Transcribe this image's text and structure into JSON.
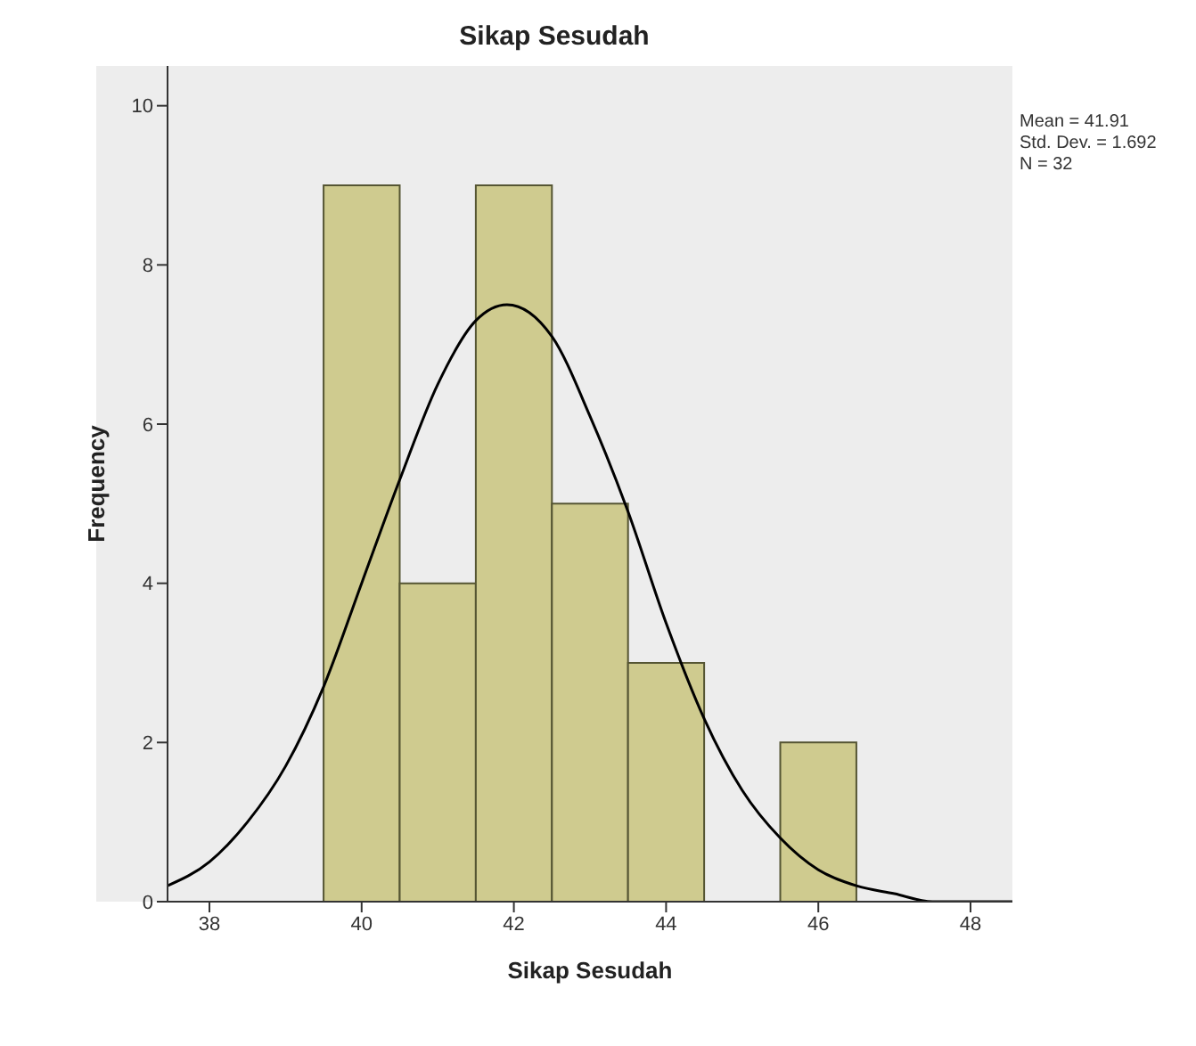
{
  "chart_data": {
    "type": "histogram",
    "title": "Sikap Sesudah",
    "xlabel": "Sikap Sesudah",
    "ylabel": "Frequency",
    "bins": [
      39.5,
      40.5,
      41.5,
      42.5,
      43.5,
      44.5,
      45.5,
      46.5
    ],
    "values": [
      9,
      4,
      9,
      5,
      3,
      0,
      2
    ],
    "color": "#cfcb8f",
    "series": [
      {
        "type": "line",
        "color": "#000000",
        "x": [
          37.45,
          38,
          38.5,
          39,
          39.5,
          40,
          40.5,
          41,
          41.5,
          41.91,
          42.5,
          43,
          43.5,
          44,
          44.5,
          45,
          45.5,
          46,
          46.5,
          47,
          47.5,
          48,
          48.55
        ],
        "values": [
          0.2,
          0.5,
          1.0,
          1.7,
          2.7,
          4.0,
          5.3,
          6.5,
          7.3,
          7.5,
          7.1,
          6.1,
          4.9,
          3.5,
          2.3,
          1.4,
          0.8,
          0.4,
          0.2,
          0.1,
          0.0,
          0.0,
          0.0
        ]
      }
    ],
    "xlim": [
      37.45,
      48.55
    ],
    "xticks": [
      38,
      40,
      42,
      44,
      46,
      48
    ],
    "ylim": [
      0,
      10.5
    ],
    "yticks": [
      0,
      2,
      4,
      6,
      8,
      10
    ],
    "annotations": [
      "Mean = 41.91",
      "Std. Dev. = 1.692",
      "N = 32"
    ],
    "grid": false,
    "marker": "none",
    "line_style": "solid"
  }
}
